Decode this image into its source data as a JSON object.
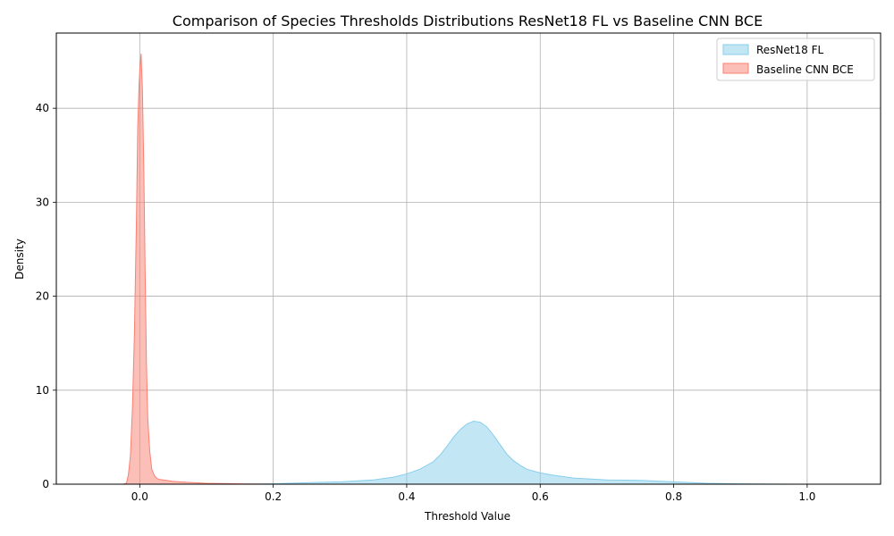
{
  "chart_data": {
    "type": "area",
    "title": "Comparison of Species Thresholds Distributions ResNet18 FL vs Baseline CNN BCE",
    "xlabel": "Threshold Value",
    "ylabel": "Density",
    "xlim": [
      -0.125,
      1.11
    ],
    "ylim": [
      0,
      48
    ],
    "xticks": [
      "0.0",
      "0.2",
      "0.4",
      "0.6",
      "0.8",
      "1.0"
    ],
    "xtick_values": [
      0.0,
      0.2,
      0.4,
      0.6,
      0.8,
      1.0
    ],
    "yticks": [
      "0",
      "10",
      "20",
      "30",
      "40"
    ],
    "ytick_values": [
      0,
      10,
      20,
      30,
      40
    ],
    "grid": true,
    "legend_position": "top-right",
    "series": [
      {
        "name": "ResNet18 FL",
        "fill": "#87ceeb",
        "stroke": "#87ceeb",
        "x": [
          -0.07,
          0.0,
          0.1,
          0.15,
          0.2,
          0.25,
          0.3,
          0.35,
          0.38,
          0.4,
          0.42,
          0.44,
          0.45,
          0.46,
          0.47,
          0.48,
          0.49,
          0.5,
          0.51,
          0.52,
          0.53,
          0.54,
          0.55,
          0.56,
          0.57,
          0.58,
          0.6,
          0.62,
          0.65,
          0.7,
          0.75,
          0.8,
          0.85,
          0.9,
          0.95,
          1.0,
          1.05
        ],
        "y": [
          0.0,
          0.0,
          0.0,
          0.0,
          0.05,
          0.15,
          0.25,
          0.45,
          0.75,
          1.1,
          1.6,
          2.4,
          3.1,
          4.0,
          5.0,
          5.8,
          6.4,
          6.7,
          6.6,
          6.1,
          5.2,
          4.2,
          3.2,
          2.5,
          2.0,
          1.6,
          1.2,
          0.95,
          0.65,
          0.45,
          0.4,
          0.25,
          0.1,
          0.03,
          0.01,
          0.0,
          0.0
        ]
      },
      {
        "name": "Baseline CNN BCE",
        "fill": "#fa8072",
        "stroke": "#fa8072",
        "x": [
          -0.025,
          -0.02,
          -0.017,
          -0.014,
          -0.011,
          -0.008,
          -0.005,
          -0.003,
          -0.001,
          0.0,
          0.002,
          0.004,
          0.006,
          0.008,
          0.01,
          0.012,
          0.015,
          0.018,
          0.022,
          0.026,
          0.03,
          0.04,
          0.05,
          0.07,
          0.1,
          0.15,
          0.2
        ],
        "y": [
          0.0,
          0.1,
          1.0,
          3.0,
          8.0,
          16.0,
          28.0,
          38.0,
          42.5,
          44.0,
          45.8,
          42.0,
          34.0,
          23.0,
          13.0,
          7.0,
          3.5,
          1.6,
          0.9,
          0.6,
          0.5,
          0.4,
          0.3,
          0.2,
          0.1,
          0.03,
          0.0
        ]
      }
    ]
  }
}
